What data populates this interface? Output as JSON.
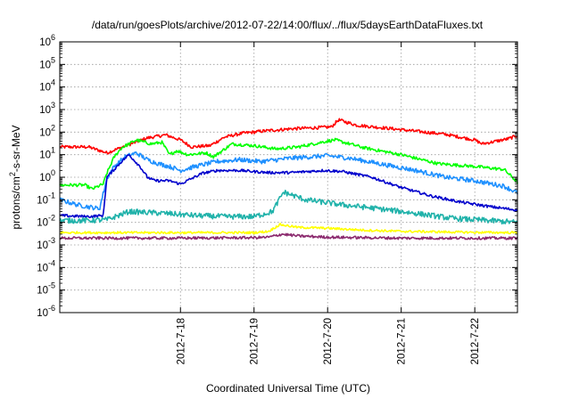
{
  "chart_data": {
    "type": "line",
    "title": "/data/run/goesPlots/archive/2012-07-22/14:00/flux/../flux/5daysEarthDataFluxes.txt",
    "xlabel": "Coordinated Universal Time (UTC)",
    "ylabel": {
      "base": "protons/cm",
      "sup": "2",
      "rest": "-s-sr-MeV"
    },
    "y_scale": "log",
    "ylim_exponents": [
      -6,
      6
    ],
    "y_tick_exponents": [
      -6,
      -5,
      -4,
      -3,
      -2,
      -1,
      0,
      1,
      2,
      3,
      4,
      5,
      6
    ],
    "xlim": [
      "2012-07-17 00:40",
      "2012-07-22 14:00"
    ],
    "x_ticks": [
      {
        "label": "2012-7-18",
        "day": 1
      },
      {
        "label": "2012-7-19",
        "day": 2
      },
      {
        "label": "2012-7-20",
        "day": 3
      },
      {
        "label": "2012-7-21",
        "day": 4
      },
      {
        "label": "2012-7-22",
        "day": 5
      }
    ],
    "grid": true,
    "legend": "none",
    "series": [
      {
        "color": "#ff0000",
        "noise": 0.07,
        "points": [
          [
            -0.64,
            22
          ],
          [
            -0.25,
            22
          ],
          [
            0.0,
            12
          ],
          [
            0.3,
            28
          ],
          [
            0.55,
            55
          ],
          [
            0.8,
            75
          ],
          [
            1.0,
            45
          ],
          [
            1.15,
            22
          ],
          [
            1.4,
            25
          ],
          [
            1.6,
            60
          ],
          [
            1.85,
            90
          ],
          [
            2.0,
            100
          ],
          [
            2.1,
            110
          ],
          [
            2.5,
            140
          ],
          [
            2.9,
            160
          ],
          [
            3.05,
            170
          ],
          [
            3.15,
            350
          ],
          [
            3.4,
            200
          ],
          [
            3.8,
            150
          ],
          [
            4.2,
            110
          ],
          [
            4.6,
            80
          ],
          [
            5.0,
            45
          ],
          [
            5.1,
            30
          ],
          [
            5.45,
            50
          ],
          [
            5.58,
            70
          ]
        ]
      },
      {
        "color": "#00ff00",
        "noise": 0.07,
        "points": [
          [
            -0.64,
            0.45
          ],
          [
            -0.3,
            0.45
          ],
          [
            -0.2,
            0.3
          ],
          [
            -0.05,
            0.5
          ],
          [
            0.0,
            1.5
          ],
          [
            0.1,
            8
          ],
          [
            0.2,
            20
          ],
          [
            0.4,
            45
          ],
          [
            0.6,
            30
          ],
          [
            0.75,
            35
          ],
          [
            0.85,
            10
          ],
          [
            0.95,
            15
          ],
          [
            1.1,
            10
          ],
          [
            1.35,
            12
          ],
          [
            1.45,
            8
          ],
          [
            1.7,
            30
          ],
          [
            2.0,
            25
          ],
          [
            2.3,
            18
          ],
          [
            2.6,
            22
          ],
          [
            3.0,
            40
          ],
          [
            3.1,
            45
          ],
          [
            3.5,
            20
          ],
          [
            4.0,
            10
          ],
          [
            4.5,
            4
          ],
          [
            5.0,
            3
          ],
          [
            5.4,
            2.2
          ],
          [
            5.58,
            0.6
          ]
        ]
      },
      {
        "color": "#1e90ff",
        "noise": 0.1,
        "points": [
          [
            -0.64,
            0.1
          ],
          [
            -0.4,
            0.06
          ],
          [
            -0.1,
            0.04
          ],
          [
            0.0,
            0.9
          ],
          [
            0.1,
            3
          ],
          [
            0.25,
            8
          ],
          [
            0.4,
            12
          ],
          [
            0.55,
            6
          ],
          [
            0.7,
            4
          ],
          [
            0.85,
            3
          ],
          [
            1.0,
            2
          ],
          [
            1.2,
            3
          ],
          [
            1.5,
            5
          ],
          [
            1.8,
            6
          ],
          [
            2.1,
            5
          ],
          [
            2.5,
            7
          ],
          [
            3.0,
            9
          ],
          [
            3.3,
            7
          ],
          [
            3.7,
            4
          ],
          [
            4.2,
            2
          ],
          [
            4.6,
            1
          ],
          [
            5.0,
            0.7
          ],
          [
            5.4,
            0.4
          ],
          [
            5.58,
            0.2
          ]
        ]
      },
      {
        "color": "#0000cc",
        "noise": 0.06,
        "points": [
          [
            -0.64,
            0.02
          ],
          [
            -0.25,
            0.018
          ],
          [
            -0.05,
            0.02
          ],
          [
            0.0,
            1.0
          ],
          [
            0.2,
            5
          ],
          [
            0.3,
            10
          ],
          [
            0.45,
            3
          ],
          [
            0.55,
            1.0
          ],
          [
            0.65,
            0.7
          ],
          [
            0.85,
            0.7
          ],
          [
            1.0,
            0.5
          ],
          [
            1.3,
            1.5
          ],
          [
            1.5,
            2
          ],
          [
            1.8,
            2
          ],
          [
            2.2,
            1.6
          ],
          [
            2.5,
            1.6
          ],
          [
            2.95,
            2
          ],
          [
            3.2,
            1.8
          ],
          [
            3.6,
            1
          ],
          [
            4.0,
            0.35
          ],
          [
            4.4,
            0.15
          ],
          [
            4.8,
            0.08
          ],
          [
            5.2,
            0.05
          ],
          [
            5.58,
            0.035
          ]
        ]
      },
      {
        "color": "#20b2aa",
        "noise": 0.12,
        "points": [
          [
            -0.64,
            0.012
          ],
          [
            -0.3,
            0.012
          ],
          [
            0.0,
            0.013
          ],
          [
            0.3,
            0.03
          ],
          [
            0.8,
            0.025
          ],
          [
            1.2,
            0.02
          ],
          [
            1.6,
            0.018
          ],
          [
            2.0,
            0.018
          ],
          [
            2.25,
            0.03
          ],
          [
            2.4,
            0.22
          ],
          [
            2.7,
            0.1
          ],
          [
            3.2,
            0.06
          ],
          [
            3.7,
            0.04
          ],
          [
            4.2,
            0.025
          ],
          [
            4.7,
            0.015
          ],
          [
            5.2,
            0.012
          ],
          [
            5.58,
            0.01
          ]
        ]
      },
      {
        "color": "#ffff00",
        "noise": 0.05,
        "points": [
          [
            -0.64,
            0.0035
          ],
          [
            0.5,
            0.0035
          ],
          [
            1.5,
            0.0035
          ],
          [
            2.0,
            0.0035
          ],
          [
            2.2,
            0.004
          ],
          [
            2.35,
            0.008
          ],
          [
            2.6,
            0.006
          ],
          [
            3.0,
            0.0055
          ],
          [
            3.5,
            0.0045
          ],
          [
            4.0,
            0.004
          ],
          [
            4.5,
            0.0038
          ],
          [
            5.0,
            0.0036
          ],
          [
            5.58,
            0.0035
          ]
        ]
      },
      {
        "color": "#8b2a6e",
        "noise": 0.06,
        "points": [
          [
            -0.64,
            0.002
          ],
          [
            1.0,
            0.002
          ],
          [
            2.0,
            0.0021
          ],
          [
            2.2,
            0.0022
          ],
          [
            2.38,
            0.003
          ],
          [
            2.6,
            0.0025
          ],
          [
            3.0,
            0.0022
          ],
          [
            4.0,
            0.002
          ],
          [
            5.0,
            0.002
          ],
          [
            5.58,
            0.002
          ]
        ]
      }
    ]
  }
}
